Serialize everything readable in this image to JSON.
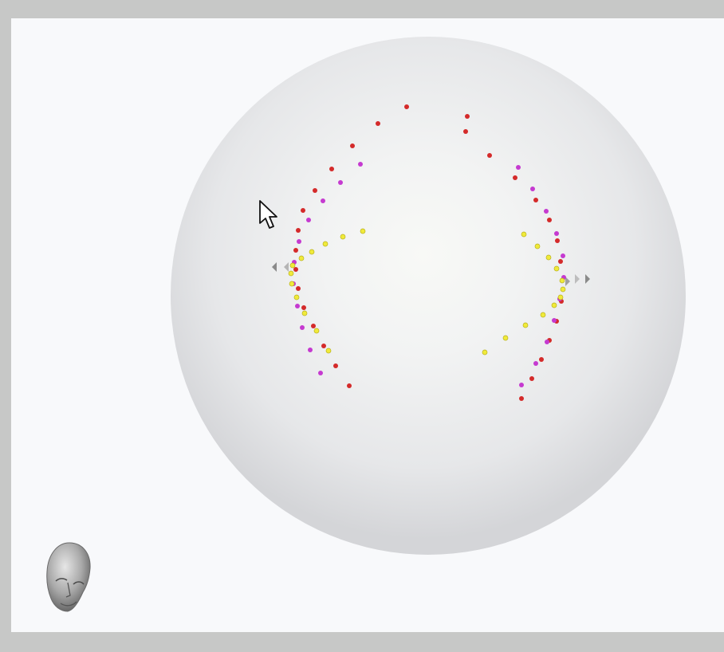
{
  "viewer": {
    "background_color": "#f8f9fb",
    "frame_color": "#c7c8c7",
    "sphere_color": "#d7d8da",
    "sphere_highlight": "#f7f8f6"
  },
  "orientation_widget": {
    "icon": "head-orientation-icon"
  },
  "cursor": {
    "icon": "mouse-pointer-icon"
  },
  "sensor_legend": {
    "red": "#d42a2a",
    "magenta": "#c53ad0",
    "yellow": "#f0ea3a"
  }
}
